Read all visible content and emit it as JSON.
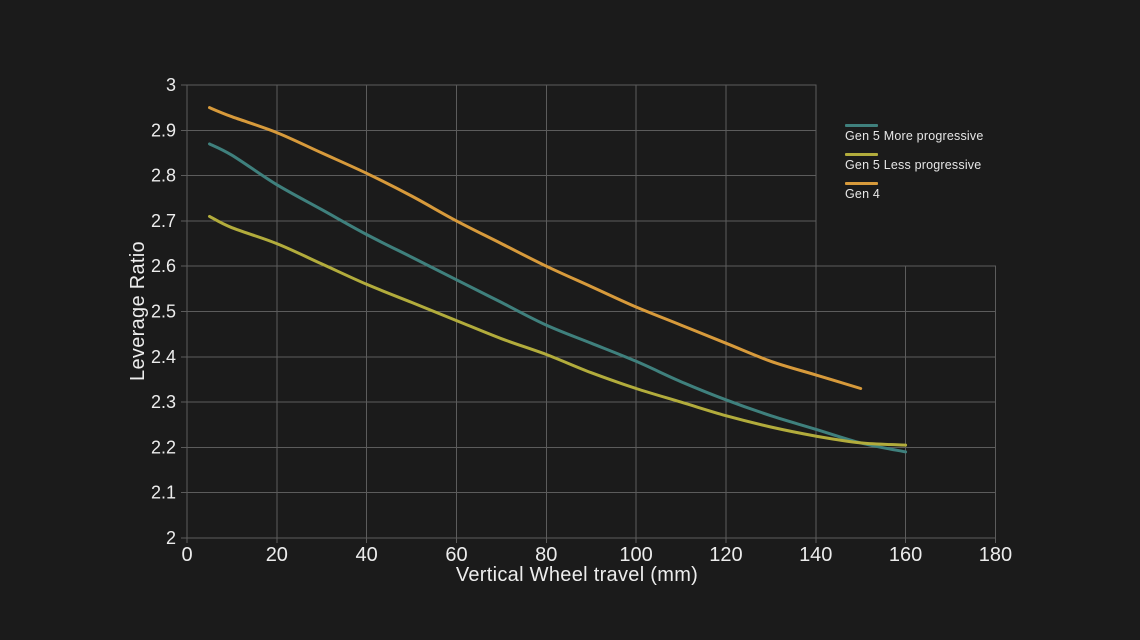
{
  "chart_data": {
    "type": "line",
    "title": "",
    "xlabel": "Vertical Wheel travel (mm)",
    "ylabel": "Leverage Ratio",
    "xlim": [
      0,
      180
    ],
    "ylim": [
      2,
      3
    ],
    "xticks": [
      0,
      20,
      40,
      60,
      80,
      100,
      120,
      140,
      160,
      180
    ],
    "yticks": [
      2,
      2.1,
      2.2,
      2.3,
      2.4,
      2.5,
      2.6,
      2.7,
      2.8,
      2.9,
      3
    ],
    "grid": true,
    "legend_position": "inside-top-right",
    "series": [
      {
        "name": "Gen 5 More progressive",
        "color": "#3f807d",
        "x": [
          5,
          10,
          20,
          30,
          40,
          50,
          60,
          70,
          80,
          90,
          100,
          110,
          120,
          130,
          140,
          150,
          160
        ],
        "y": [
          2.87,
          2.845,
          2.78,
          2.725,
          2.67,
          2.62,
          2.57,
          2.52,
          2.47,
          2.43,
          2.39,
          2.345,
          2.305,
          2.27,
          2.24,
          2.21,
          2.19
        ]
      },
      {
        "name": "Gen 5 Less progressive",
        "color": "#b2ac3c",
        "x": [
          5,
          10,
          20,
          30,
          40,
          50,
          60,
          70,
          80,
          90,
          100,
          110,
          120,
          130,
          140,
          150,
          160
        ],
        "y": [
          2.71,
          2.685,
          2.65,
          2.605,
          2.56,
          2.52,
          2.48,
          2.44,
          2.405,
          2.365,
          2.33,
          2.3,
          2.27,
          2.245,
          2.225,
          2.21,
          2.205
        ]
      },
      {
        "name": "Gen 4",
        "color": "#d79a3b",
        "x": [
          5,
          10,
          20,
          30,
          40,
          50,
          60,
          70,
          80,
          90,
          100,
          110,
          120,
          130,
          140,
          150
        ],
        "y": [
          2.95,
          2.93,
          2.895,
          2.85,
          2.805,
          2.755,
          2.7,
          2.65,
          2.6,
          2.555,
          2.51,
          2.47,
          2.43,
          2.39,
          2.36,
          2.33
        ]
      }
    ],
    "colors": {
      "background": "#1b1b1b",
      "grid": "#5c5c5c",
      "text": "#ececec"
    }
  }
}
